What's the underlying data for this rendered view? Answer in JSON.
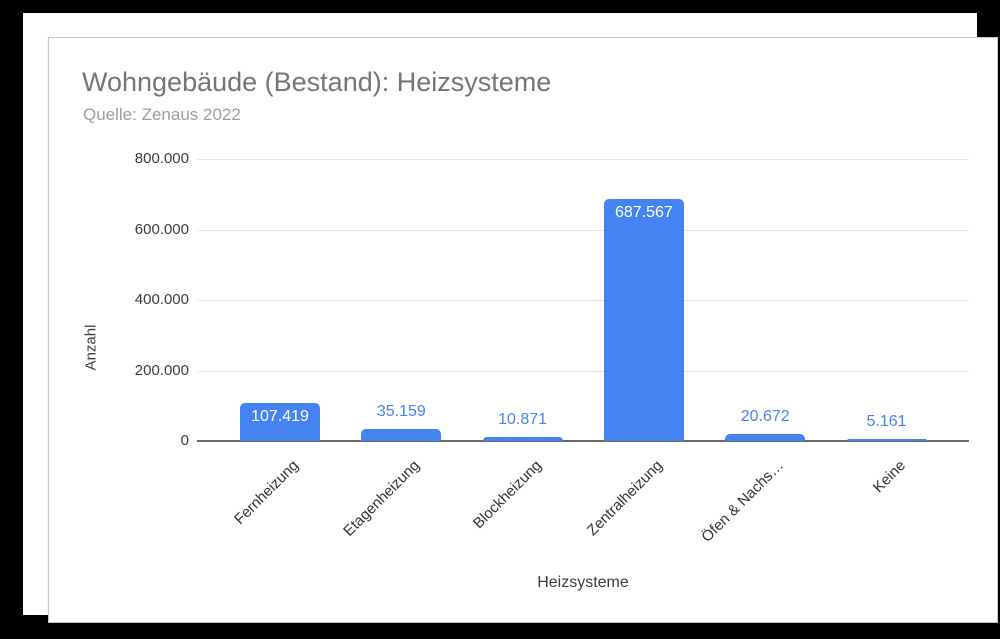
{
  "window": {
    "background": "#000000",
    "canvas_background": "#ffffff",
    "card_border": "#c6c6c6"
  },
  "chart_data": {
    "type": "bar",
    "title": "Wohngebäude (Bestand): Heizsysteme",
    "subtitle": "Quelle: Zenaus 2022",
    "xlabel": "Heizsysteme",
    "ylabel": "Anzahl",
    "categories": [
      "Fernheizung",
      "Etagenheizung",
      "Blockheizung",
      "Zentralheizung",
      "Öfen & Nachs…",
      "Keine"
    ],
    "values": [
      107419,
      35159,
      10871,
      687567,
      20672,
      5161
    ],
    "value_labels": [
      "107.419",
      "35.159",
      "10.871",
      "687.567",
      "20.672",
      "5.161"
    ],
    "value_label_placement": [
      "inside",
      "above",
      "above",
      "inside",
      "above",
      "above"
    ],
    "y_ticks": [
      {
        "label": "800.000",
        "value": 800000
      },
      {
        "label": "600.000",
        "value": 600000
      },
      {
        "label": "400.000",
        "value": 400000
      },
      {
        "label": "200.000",
        "value": 200000
      },
      {
        "label": "0",
        "value": 0
      }
    ],
    "ylim": [
      0,
      800000
    ],
    "grid": true,
    "legend": "none",
    "colors": {
      "bar": "#4583f1",
      "value_label_inside": "#ffffff",
      "value_label_above": "#4583f1",
      "title": "#757575",
      "subtitle": "#9e9e9e",
      "axis_text": "#3c3c3c",
      "gridline": "#e6e6e6",
      "baseline": "#6a6a6a"
    }
  }
}
